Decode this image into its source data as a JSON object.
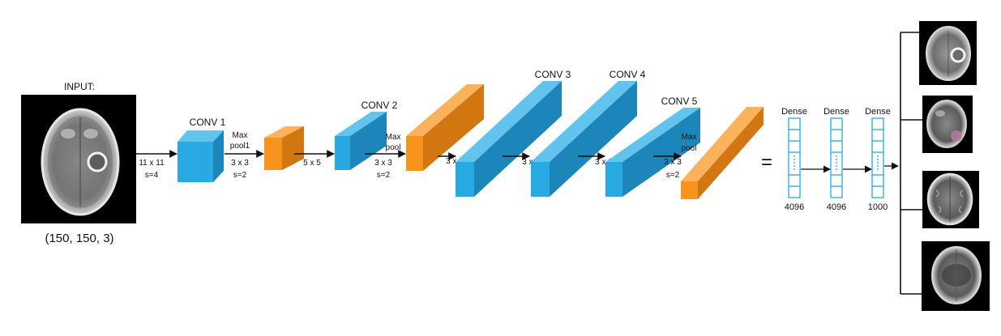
{
  "input": {
    "title": "INPUT:",
    "shape": "(150, 150, 3)",
    "kernel": "11 x 11",
    "stride": "s=4"
  },
  "conv1": {
    "label": "CONV 1"
  },
  "pool1": {
    "line1": "Max",
    "line2": "pool1",
    "kernel": "3 x 3",
    "stride": "s=2"
  },
  "conv2_kernel": "5 x 5",
  "conv2": {
    "label": "CONV 2"
  },
  "pool2": {
    "line1": "Max",
    "line2": "pool",
    "kernel": "3 x 3",
    "stride": "s=2"
  },
  "conv3_kernel": "3 x 3",
  "conv3": {
    "label": "CONV 3"
  },
  "conv4_kernel": "3 x 3",
  "conv4": {
    "label": "CONV 4"
  },
  "conv5_kernel": "3 x 3",
  "conv5": {
    "label": "CONV 5"
  },
  "pool3": {
    "line1": "Max",
    "line2": "pool",
    "kernel": "3 x 3",
    "stride": "s=2"
  },
  "equals": "=",
  "dense": [
    {
      "label": "Dense",
      "units": "4096"
    },
    {
      "label": "Dense",
      "units": "4096"
    },
    {
      "label": "Dense",
      "units": "1000"
    }
  ],
  "colors": {
    "conv": "#29a9e1",
    "conv_dark": "#1c86bb",
    "conv_light": "#62c4ee",
    "pool": "#f7941d",
    "pool_dark": "#d27612",
    "pool_light": "#fab35c",
    "dense": "#29a9e1"
  }
}
